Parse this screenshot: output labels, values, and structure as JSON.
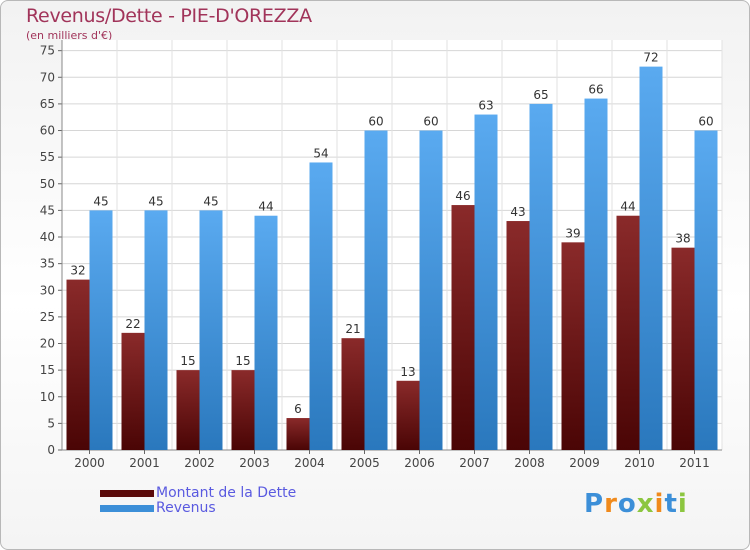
{
  "colors": {
    "title": "#a1345a",
    "legend_text": "#5a5ae0",
    "debt": "#7a2020",
    "revenue": "#3c8fd8"
  },
  "header": {
    "title": "Revenus/Dette - PIE-D'OREZZA",
    "subtitle": "(en milliers d'€)"
  },
  "legend": {
    "items": [
      {
        "label": "Montant de la Dette",
        "color": "#5a0a0a"
      },
      {
        "label": "Revenus",
        "color": "#3c8fd8"
      }
    ]
  },
  "logo": {
    "letters": [
      {
        "char": "P",
        "color": "#3c8fd8"
      },
      {
        "char": "r",
        "color": "#f08a1c"
      },
      {
        "char": "o",
        "color": "#3c8fd8"
      },
      {
        "char": "x",
        "color": "#8cc63f"
      },
      {
        "char": "i",
        "color": "#f08a1c"
      },
      {
        "char": "t",
        "color": "#3c8fd8"
      },
      {
        "char": "i",
        "color": "#8cc63f"
      }
    ]
  },
  "chart_data": {
    "type": "bar",
    "title": "Revenus/Dette - PIE-D'OREZZA",
    "subtitle": "(en milliers d'€)",
    "categories": [
      "2000",
      "2001",
      "2002",
      "2003",
      "2004",
      "2005",
      "2006",
      "2007",
      "2008",
      "2009",
      "2010",
      "2011"
    ],
    "series": [
      {
        "name": "Montant de la Dette",
        "values": [
          32,
          22,
          15,
          15,
          6,
          21,
          13,
          46,
          43,
          39,
          44,
          38
        ]
      },
      {
        "name": "Revenus",
        "values": [
          45,
          45,
          45,
          44,
          54,
          60,
          60,
          63,
          65,
          66,
          72,
          60
        ]
      }
    ],
    "y_ticks": [
      "0",
      "5",
      "10",
      "15",
      "20",
      "25",
      "30",
      "35",
      "40",
      "45",
      "50",
      "55",
      "60",
      "65",
      "70",
      "75"
    ],
    "ylim": [
      0,
      77
    ],
    "grid": true,
    "legend_position": "bottom-left"
  }
}
